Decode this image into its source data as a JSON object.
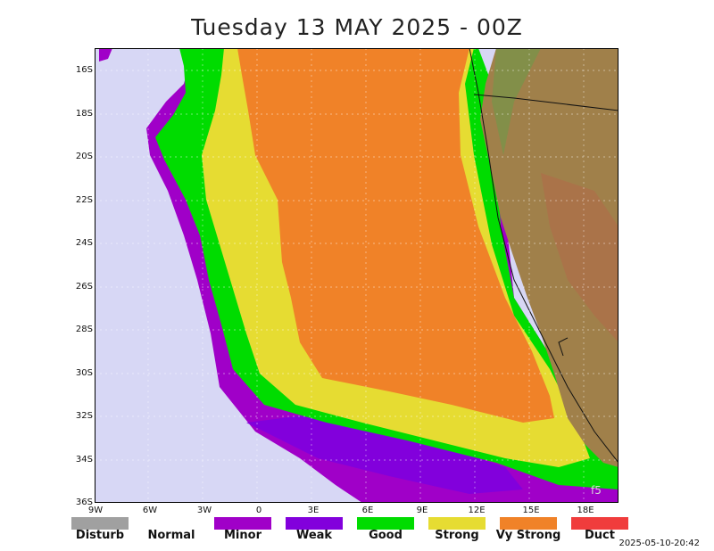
{
  "title": "Tuesday 13 MAY 2025 - 00Z",
  "timestamp": "2025-05-10-20:42",
  "watermark": "f5",
  "lat_labels": [
    "16S",
    "18S",
    "20S",
    "22S",
    "24S",
    "26S",
    "28S",
    "30S",
    "32S",
    "34S",
    "36S"
  ],
  "lon_labels": [
    "9W",
    "6W",
    "3W",
    "0",
    "3E",
    "6E",
    "9E",
    "12E",
    "15E",
    "18E"
  ],
  "legend": [
    {
      "label": "Disturb",
      "color": "#a0a0a0"
    },
    {
      "label": "Normal",
      "color": "#ffffff"
    },
    {
      "label": "Minor",
      "color": "#a000c8"
    },
    {
      "label": "Weak",
      "color": "#8200dc"
    },
    {
      "label": "Good",
      "color": "#00dc00"
    },
    {
      "label": "Strong",
      "color": "#e6dc32"
    },
    {
      "label": "Vy Strong",
      "color": "#f08228"
    },
    {
      "label": "Duct",
      "color": "#f03c3c"
    }
  ]
}
